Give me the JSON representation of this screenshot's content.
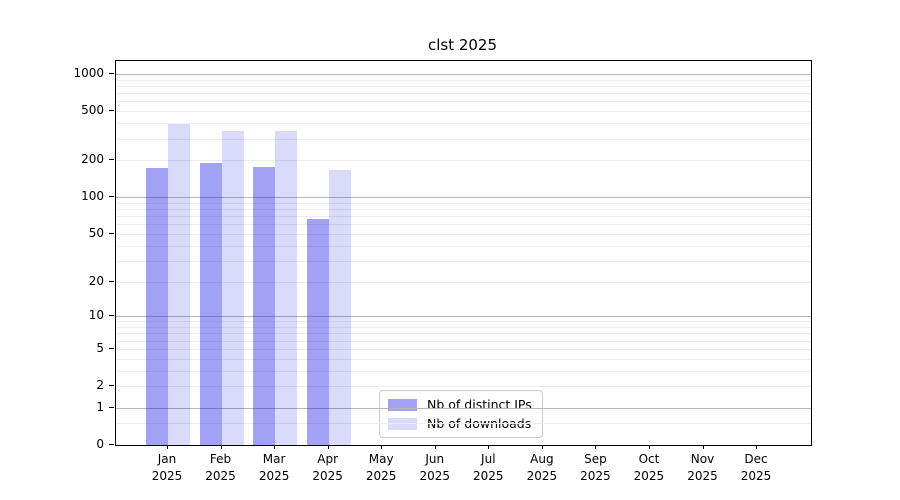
{
  "colors": {
    "series": [
      "rgba(10,10,225,0.38)",
      "rgba(10,10,225,0.15)"
    ],
    "grid_major": "#b6b6b6",
    "grid_minor": "#ededed",
    "axis": "#000000"
  },
  "chart_data": {
    "type": "bar",
    "title": "clst 2025",
    "xlabel": "",
    "ylabel": "",
    "scale": "log1p",
    "ylim": [
      0,
      1276
    ],
    "grid": true,
    "legend_position": "lower center",
    "categories": [
      "Jan",
      "Feb",
      "Mar",
      "Apr",
      "May",
      "Jun",
      "Jul",
      "Aug",
      "Sep",
      "Oct",
      "Nov",
      "Dec"
    ],
    "x_year_label": "2025",
    "y_ticks": [
      0,
      1,
      2,
      5,
      10,
      20,
      50,
      100,
      200,
      500,
      1000
    ],
    "y_gridlines_major": [
      1,
      10,
      100,
      1000
    ],
    "y_gridlines_minor": [
      0.5,
      2,
      3,
      4,
      5,
      6,
      7,
      8,
      9,
      20,
      30,
      40,
      50,
      60,
      70,
      80,
      90,
      200,
      300,
      400,
      500,
      600,
      700,
      800,
      900
    ],
    "series": [
      {
        "name": "Nb of distinct IPs",
        "values": [
          173,
          190,
          177,
          66,
          0,
          0,
          0,
          0,
          0,
          0,
          0,
          0
        ]
      },
      {
        "name": "Nb of downloads",
        "values": [
          394,
          345,
          345,
          166,
          0,
          0,
          0,
          0,
          0,
          0,
          0,
          0
        ]
      }
    ]
  }
}
